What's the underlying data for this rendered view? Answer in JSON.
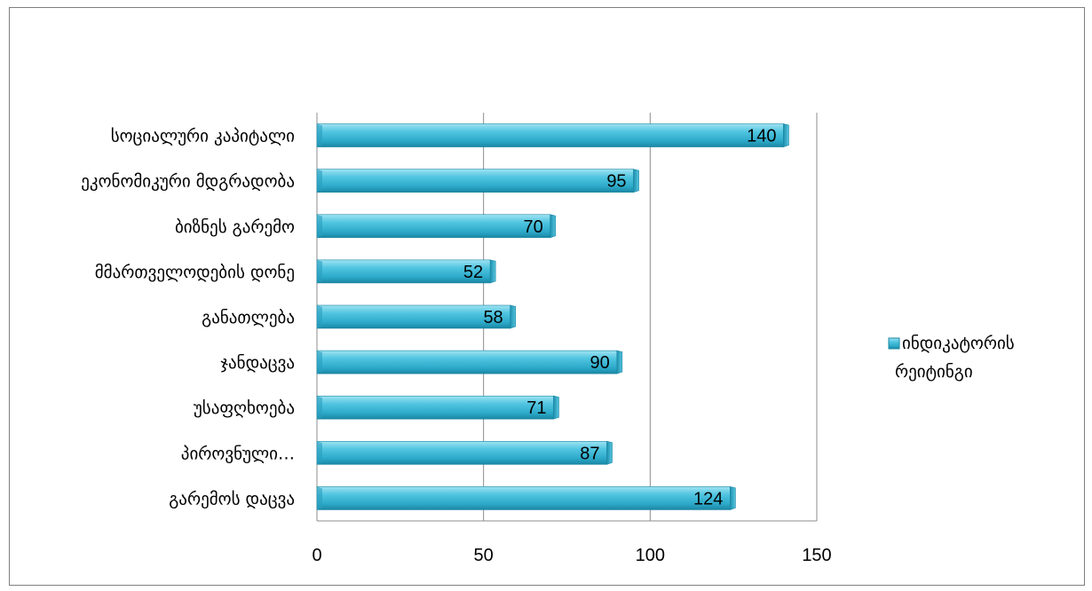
{
  "chart_data": {
    "type": "bar",
    "orientation": "horizontal",
    "categories": [
      "სოციალური კაპიტალი",
      "ეკონომიკური მდგრადობა",
      "ბიზნეს გარემო",
      "მმართველოდების დონე",
      "განათლება",
      "ჯანდაცვა",
      "უსაფღხოება",
      "პიროვნული…",
      "გარემოს დაცვა"
    ],
    "series": [
      {
        "name": "ინდიკატორის რეიტინგი",
        "name_lines": [
          "ინდიკატორის",
          "რეიტინგი"
        ],
        "values": [
          140,
          95,
          70,
          52,
          58,
          90,
          71,
          87,
          124
        ],
        "color": "#31B6D6"
      }
    ],
    "xlim": [
      0,
      150
    ],
    "xticks": [
      "0",
      "50",
      "100",
      "150"
    ],
    "grid": true,
    "legend_position": "right"
  }
}
